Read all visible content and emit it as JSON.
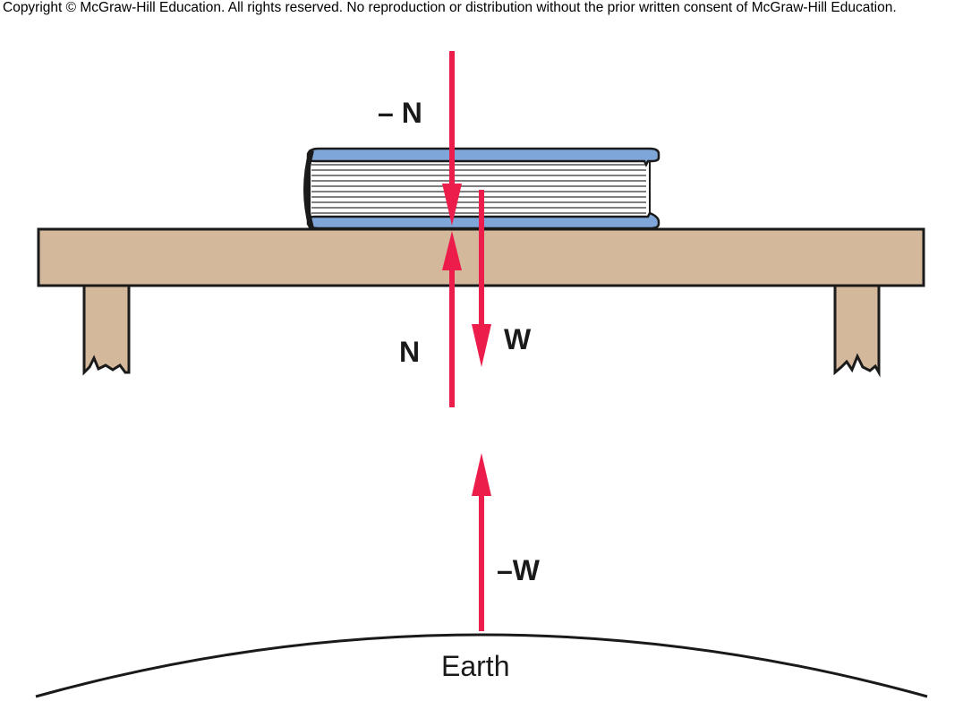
{
  "copyright": "Copyright © McGraw-Hill Education.  All rights reserved. No reproduction or distribution without the prior written consent of McGraw-Hill Education.",
  "labels": {
    "neg_n": "– N",
    "n": "N",
    "w": "W",
    "neg_w": "–W",
    "earth": "Earth"
  },
  "colors": {
    "force_arrow": "#ec1c4b",
    "table": "#d4b89c",
    "book_cover": "#7fa6d9",
    "outline": "#1a1a1a"
  }
}
